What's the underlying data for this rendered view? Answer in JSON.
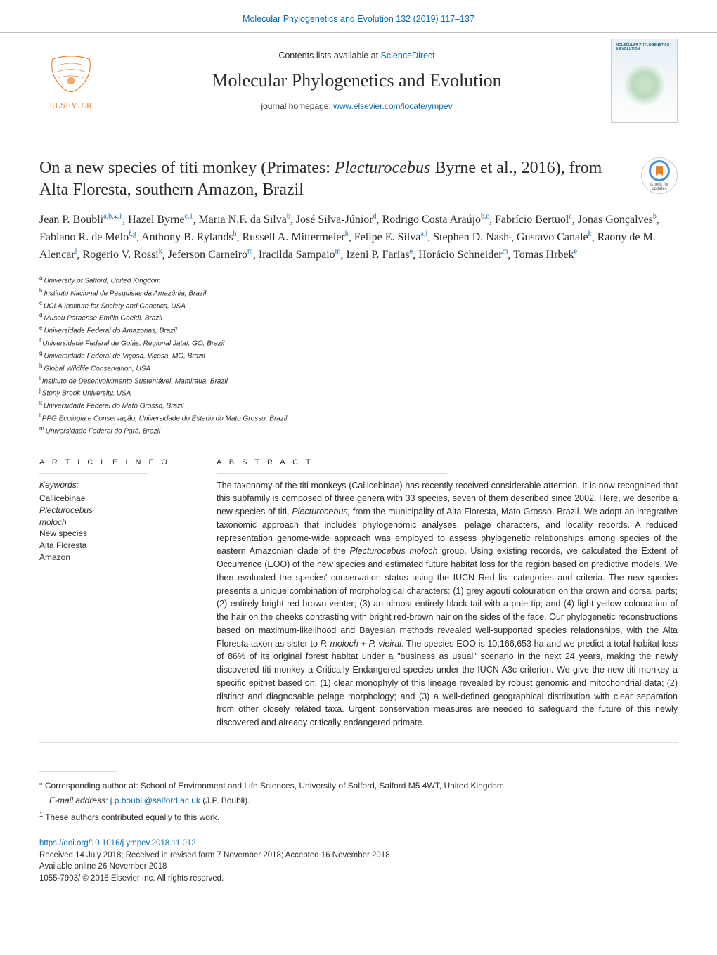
{
  "top_cite": {
    "prefix": "",
    "link_text": "Molecular Phylogenetics and Evolution 132 (2019) 117–137"
  },
  "header": {
    "contents_prefix": "Contents lists available at ",
    "contents_link": "ScienceDirect",
    "journal_title": "Molecular Phylogenetics and Evolution",
    "homepage_prefix": "journal homepage: ",
    "homepage_link": "www.elsevier.com/locate/ympev",
    "cover_text": "MOLECULAR PHYLOGENETICS & EVOLUTION",
    "publisher_name": "ELSEVIER"
  },
  "check_updates": {
    "line1": "Check for",
    "line2": "updates"
  },
  "title": {
    "pre": "On a new species of titi monkey (Primates: ",
    "genus": "Plecturocebus",
    "post": " Byrne et al., 2016), from Alta Floresta, southern Amazon, Brazil"
  },
  "authors": [
    {
      "name": "Jean P. Boubli",
      "sup": "a,b,",
      "star": true,
      "one": true
    },
    {
      "name": "Hazel Byrne",
      "sup": "c,",
      "one": true
    },
    {
      "name": "Maria N.F. da Silva",
      "sup": "b"
    },
    {
      "name": "José Silva-Júnior",
      "sup": "d"
    },
    {
      "name": "Rodrigo Costa Araújo",
      "sup": "b,e"
    },
    {
      "name": "Fabrício Bertuol",
      "sup": "e"
    },
    {
      "name": "Jonas Gonçalves",
      "sup": "b"
    },
    {
      "name": "Fabiano R. de Melo",
      "sup": "f,g"
    },
    {
      "name": "Anthony B. Rylands",
      "sup": "h"
    },
    {
      "name": "Russell A. Mittermeier",
      "sup": "h"
    },
    {
      "name": "Felipe E. Silva",
      "sup": "a,i"
    },
    {
      "name": "Stephen D. Nash",
      "sup": "j"
    },
    {
      "name": "Gustavo Canale",
      "sup": "k"
    },
    {
      "name": "Raony de M. Alencar",
      "sup": "l"
    },
    {
      "name": "Rogerio V. Rossi",
      "sup": "k"
    },
    {
      "name": "Jeferson Carneiro",
      "sup": "m"
    },
    {
      "name": "Iracilda Sampaio",
      "sup": "m"
    },
    {
      "name": "Izeni P. Farias",
      "sup": "e"
    },
    {
      "name": "Horácio Schneider",
      "sup": "m"
    },
    {
      "name": "Tomas Hrbek",
      "sup": "e"
    }
  ],
  "affiliations": [
    {
      "key": "a",
      "text": "University of Salford, United Kingdom"
    },
    {
      "key": "b",
      "text": "Instituto Nacional de Pesquisas da Amazônia, Brazil"
    },
    {
      "key": "c",
      "text": "UCLA Institute for Society and Genetics, USA"
    },
    {
      "key": "d",
      "text": "Museu Paraense Emílio Goeldi, Brazil"
    },
    {
      "key": "e",
      "text": "Universidade Federal do Amazonas, Brazil"
    },
    {
      "key": "f",
      "text": "Universidade Federal de Goiás, Regional Jataí, GO, Brazil"
    },
    {
      "key": "g",
      "text": "Universidade Federal de Viçosa, Viçosa, MG, Brazil"
    },
    {
      "key": "h",
      "text": "Global Wildlife Conservation, USA"
    },
    {
      "key": "i",
      "text": "Instituto de Desenvolvimento Sustentável, Mamirauá, Brazil"
    },
    {
      "key": "j",
      "text": "Stony Brook University, USA"
    },
    {
      "key": "k",
      "text": "Universidade Federal do Mato Grosso, Brazil"
    },
    {
      "key": "l",
      "text": "PPG Ecologia e Conservação, Universidade do Estado do Mato Grosso, Brazil"
    },
    {
      "key": "m",
      "text": "Universidade Federal do Pará, Brazil"
    }
  ],
  "article_info": {
    "heading": "A R T I C L E  I N F O",
    "keywords_label": "Keywords:",
    "keywords": [
      "Callicebinae",
      "Plecturocebus",
      "moloch",
      "New species",
      "Alta Floresta",
      "Amazon"
    ],
    "italic_kw_indices": [
      1,
      2
    ]
  },
  "abstract": {
    "heading": "A B S T R A C T",
    "text": "The taxonomy of the titi monkeys (Callicebinae) has recently received considerable attention. It is now recognised that this subfamily is composed of three genera with 33 species, seven of them described since 2002. Here, we describe a new species of titi, Plecturocebus, from the municipality of Alta Floresta, Mato Grosso, Brazil. We adopt an integrative taxonomic approach that includes phylogenomic analyses, pelage characters, and locality records. A reduced representation genome-wide approach was employed to assess phylogenetic relationships among species of the eastern Amazonian clade of the Plecturocebus moloch group. Using existing records, we calculated the Extent of Occurrence (EOO) of the new species and estimated future habitat loss for the region based on predictive models. We then evaluated the species' conservation status using the IUCN Red list categories and criteria. The new species presents a unique combination of morphological characters: (1) grey agouti colouration on the crown and dorsal parts; (2) entirely bright red-brown venter; (3) an almost entirely black tail with a pale tip; and (4) light yellow colouration of the hair on the cheeks contrasting with bright red-brown hair on the sides of the face. Our phylogenetic reconstructions based on maximum-likelihood and Bayesian methods revealed well-supported species relationships, with the Alta Floresta taxon as sister to P. moloch + P. vieirai. The species EOO is 10,166,653 ha and we predict a total habitat loss of 86% of its original forest habitat under a \"business as usual\" scenario in the next 24 years, making the newly discovered titi monkey a Critically Endangered species under the IUCN A3c criterion. We give the new titi monkey a specific epithet based on: (1) clear monophyly of this lineage revealed by robust genomic and mitochondrial data; (2) distinct and diagnosable pelage morphology; and (3) a well-defined geographical distribution with clear separation from other closely related taxa. Urgent conservation measures are needed to safeguard the future of this newly discovered and already critically endangered primate."
  },
  "footnotes": {
    "corr_marker": "⁎",
    "corr_text": " Corresponding author at: School of Environment and Life Sciences, University of Salford, Salford M5 4WT, United Kingdom.",
    "email_label": "E-mail address: ",
    "email": "j.p.boubli@salford.ac.uk",
    "email_person": " (J.P. Boubli).",
    "equal_marker": "1",
    "equal_text": " These authors contributed equally to this work."
  },
  "doi": {
    "url": "https://doi.org/10.1016/j.ympev.2018.11.012",
    "received": "Received 14 July 2018; Received in revised form 7 November 2018; Accepted 16 November 2018",
    "available": "Available online 26 November 2018",
    "copyright": "1055-7903/ © 2018 Elsevier Inc. All rights reserved."
  },
  "colors": {
    "link": "#0d6aa8",
    "text": "#2b2b2b",
    "rule": "#dcdcdc"
  }
}
